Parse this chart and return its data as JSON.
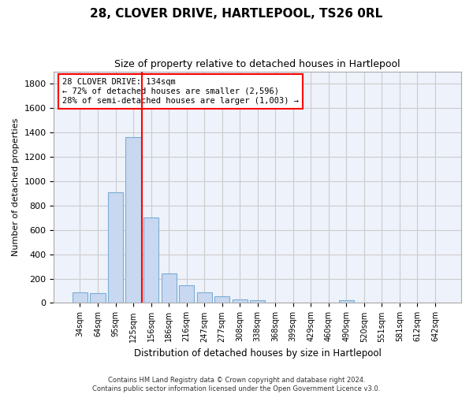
{
  "title": "28, CLOVER DRIVE, HARTLEPOOL, TS26 0RL",
  "subtitle": "Size of property relative to detached houses in Hartlepool",
  "xlabel": "Distribution of detached houses by size in Hartlepool",
  "ylabel": "Number of detached properties",
  "footnote1": "Contains HM Land Registry data © Crown copyright and database right 2024.",
  "footnote2": "Contains public sector information licensed under the Open Government Licence v3.0.",
  "bar_labels": [
    "34sqm",
    "64sqm",
    "95sqm",
    "125sqm",
    "156sqm",
    "186sqm",
    "216sqm",
    "247sqm",
    "277sqm",
    "308sqm",
    "338sqm",
    "368sqm",
    "399sqm",
    "429sqm",
    "460sqm",
    "490sqm",
    "520sqm",
    "551sqm",
    "581sqm",
    "612sqm",
    "642sqm"
  ],
  "bar_values": [
    90,
    80,
    905,
    1360,
    700,
    245,
    145,
    90,
    55,
    30,
    20,
    0,
    0,
    0,
    0,
    20,
    0,
    0,
    0,
    0,
    0
  ],
  "bar_color": "#c8d8f0",
  "bar_edge_color": "#7aadd4",
  "property_line_x": 3.5,
  "property_label": "28 CLOVER DRIVE: 134sqm",
  "annotation_line1": "← 72% of detached houses are smaller (2,596)",
  "annotation_line2": "28% of semi-detached houses are larger (1,003) →",
  "vline_color": "red",
  "ylim": [
    0,
    1900
  ],
  "yticks": [
    0,
    200,
    400,
    600,
    800,
    1000,
    1200,
    1400,
    1600,
    1800
  ],
  "grid_color": "#cccccc",
  "bg_color": "#eef2fb",
  "annotation_box_color": "white",
  "annotation_box_edge": "red"
}
